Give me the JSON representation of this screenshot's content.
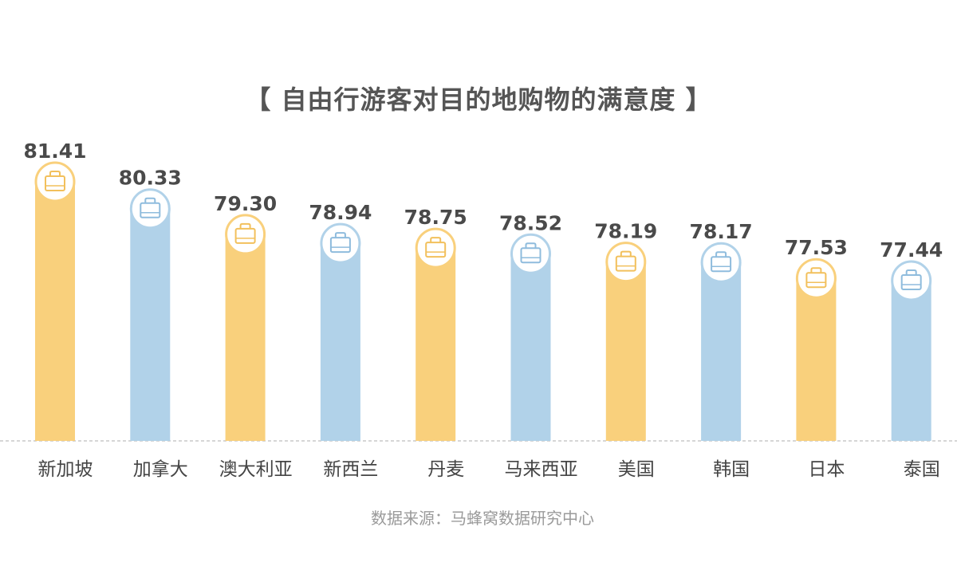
{
  "chart_data": {
    "type": "bar",
    "title": "【 自由行游客对目的地购物的满意度 】",
    "categories": [
      "新加坡",
      "加拿大",
      "澳大利亚",
      "新西兰",
      "丹麦",
      "马来西亚",
      "美国",
      "韩国",
      "日本",
      "泰国"
    ],
    "values": [
      81.41,
      80.33,
      79.3,
      78.94,
      78.75,
      78.52,
      78.19,
      78.17,
      77.53,
      77.44
    ],
    "value_labels": [
      "81.41",
      "80.33",
      "79.30",
      "78.94",
      "78.75",
      "78.52",
      "78.19",
      "78.17",
      "77.53",
      "77.44"
    ],
    "bar_colors": [
      "#f9d07c",
      "#b1d2e9",
      "#f9d07c",
      "#b1d2e9",
      "#f9d07c",
      "#b1d2e9",
      "#f9d07c",
      "#b1d2e9",
      "#f9d07c",
      "#b1d2e9"
    ],
    "icon_stroke_colors": [
      "#f2c05c",
      "#8fbcdd",
      "#f2c05c",
      "#8fbcdd",
      "#f2c05c",
      "#8fbcdd",
      "#f2c05c",
      "#8fbcdd",
      "#f2c05c",
      "#8fbcdd"
    ],
    "bar_icon": "shopping-bag-icon",
    "xlabel": "",
    "ylabel": "",
    "grid": false,
    "legend": "none"
  },
  "source": "数据来源：马蜂窝数据研究中心"
}
